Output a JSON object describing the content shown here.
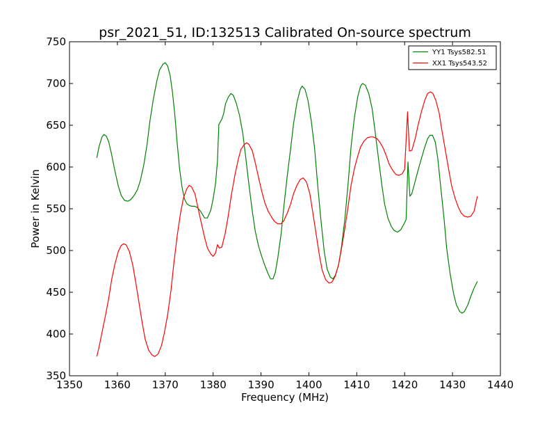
{
  "chart_data": {
    "type": "line",
    "title": "psr_2021_51, ID:132513 Calibrated On-source spectrum",
    "xlabel": "Frequency (MHz)",
    "ylabel": "Power in Kelvin",
    "xlim": [
      1350,
      1440
    ],
    "ylim": [
      350,
      750
    ],
    "x_ticks": [
      1350,
      1360,
      1370,
      1380,
      1390,
      1400,
      1410,
      1420,
      1430,
      1440
    ],
    "y_ticks": [
      350,
      400,
      450,
      500,
      550,
      600,
      650,
      700,
      750
    ],
    "grid": false,
    "legend_position": "top-right",
    "series": [
      {
        "name": "YY1 Tsys582.51",
        "color": "#008000",
        "points": [
          [
            1355.7,
            611
          ],
          [
            1356.2,
            625
          ],
          [
            1356.8,
            636
          ],
          [
            1357.2,
            639
          ],
          [
            1357.7,
            637
          ],
          [
            1358.2,
            630
          ],
          [
            1358.8,
            615
          ],
          [
            1359.5,
            595
          ],
          [
            1360.2,
            577
          ],
          [
            1360.8,
            566
          ],
          [
            1361.5,
            560
          ],
          [
            1362.2,
            559
          ],
          [
            1362.8,
            561
          ],
          [
            1363.5,
            566
          ],
          [
            1364.2,
            573
          ],
          [
            1364.8,
            584
          ],
          [
            1365.5,
            602
          ],
          [
            1366.2,
            627
          ],
          [
            1366.8,
            655
          ],
          [
            1367.5,
            681
          ],
          [
            1368.2,
            702
          ],
          [
            1368.8,
            716
          ],
          [
            1369.5,
            723
          ],
          [
            1370.0,
            725
          ],
          [
            1370.5,
            721
          ],
          [
            1371.0,
            710
          ],
          [
            1371.5,
            690
          ],
          [
            1372.0,
            662
          ],
          [
            1372.5,
            628
          ],
          [
            1373.0,
            598
          ],
          [
            1373.5,
            576
          ],
          [
            1374.0,
            562
          ],
          [
            1374.5,
            556
          ],
          [
            1375.0,
            554
          ],
          [
            1375.5,
            553
          ],
          [
            1376.2,
            553
          ],
          [
            1376.8,
            551
          ],
          [
            1377.5,
            546
          ],
          [
            1378.2,
            539
          ],
          [
            1378.8,
            539
          ],
          [
            1379.5,
            548
          ],
          [
            1380.0,
            562
          ],
          [
            1380.5,
            580
          ],
          [
            1380.9,
            607
          ],
          [
            1381.2,
            651
          ],
          [
            1381.8,
            657
          ],
          [
            1382.2,
            664
          ],
          [
            1382.6,
            676
          ],
          [
            1383.2,
            684
          ],
          [
            1383.7,
            688
          ],
          [
            1384.2,
            686
          ],
          [
            1384.8,
            677
          ],
          [
            1385.5,
            662
          ],
          [
            1386.2,
            640
          ],
          [
            1386.8,
            612
          ],
          [
            1387.5,
            578
          ],
          [
            1388.2,
            546
          ],
          [
            1388.8,
            523
          ],
          [
            1389.5,
            505
          ],
          [
            1390.2,
            492
          ],
          [
            1390.8,
            482
          ],
          [
            1391.5,
            472
          ],
          [
            1392.0,
            466
          ],
          [
            1392.5,
            466
          ],
          [
            1393.0,
            474
          ],
          [
            1393.5,
            491
          ],
          [
            1394.2,
            520
          ],
          [
            1394.8,
            554
          ],
          [
            1395.5,
            590
          ],
          [
            1396.2,
            623
          ],
          [
            1396.8,
            652
          ],
          [
            1397.5,
            677
          ],
          [
            1398.2,
            693
          ],
          [
            1398.6,
            697
          ],
          [
            1399.2,
            693
          ],
          [
            1399.8,
            680
          ],
          [
            1400.5,
            655
          ],
          [
            1401.2,
            622
          ],
          [
            1401.8,
            581
          ],
          [
            1402.5,
            537
          ],
          [
            1403.2,
            499
          ],
          [
            1403.8,
            478
          ],
          [
            1404.5,
            468
          ],
          [
            1405.0,
            466
          ],
          [
            1405.5,
            470
          ],
          [
            1406.2,
            483
          ],
          [
            1406.8,
            504
          ],
          [
            1407.5,
            537
          ],
          [
            1408.2,
            580
          ],
          [
            1408.8,
            624
          ],
          [
            1409.5,
            659
          ],
          [
            1410.2,
            684
          ],
          [
            1410.8,
            697
          ],
          [
            1411.2,
            700
          ],
          [
            1411.8,
            698
          ],
          [
            1412.5,
            688
          ],
          [
            1413.2,
            670
          ],
          [
            1413.8,
            644
          ],
          [
            1414.5,
            612
          ],
          [
            1415.2,
            580
          ],
          [
            1415.8,
            556
          ],
          [
            1416.5,
            539
          ],
          [
            1417.2,
            529
          ],
          [
            1417.8,
            524
          ],
          [
            1418.5,
            522
          ],
          [
            1419.2,
            525
          ],
          [
            1419.8,
            531
          ],
          [
            1420.3,
            537
          ],
          [
            1420.7,
            606
          ],
          [
            1421.1,
            565
          ],
          [
            1421.5,
            568
          ],
          [
            1422.2,
            583
          ],
          [
            1422.8,
            596
          ],
          [
            1423.5,
            610
          ],
          [
            1424.2,
            624
          ],
          [
            1424.8,
            634
          ],
          [
            1425.3,
            638
          ],
          [
            1425.8,
            638
          ],
          [
            1426.4,
            630
          ],
          [
            1426.9,
            611
          ],
          [
            1427.5,
            578
          ],
          [
            1428.2,
            540
          ],
          [
            1428.8,
            502
          ],
          [
            1429.5,
            472
          ],
          [
            1430.2,
            449
          ],
          [
            1430.8,
            435
          ],
          [
            1431.5,
            427
          ],
          [
            1432.0,
            425
          ],
          [
            1432.5,
            427
          ],
          [
            1433.2,
            435
          ],
          [
            1433.8,
            445
          ],
          [
            1434.5,
            455
          ],
          [
            1435.2,
            463
          ]
        ]
      },
      {
        "name": "XX1 Tsys543.52",
        "color": "#ff0000",
        "points": [
          [
            1355.7,
            373
          ],
          [
            1356.2,
            385
          ],
          [
            1356.8,
            402
          ],
          [
            1357.5,
            422
          ],
          [
            1358.2,
            443
          ],
          [
            1358.8,
            465
          ],
          [
            1359.5,
            484
          ],
          [
            1360.2,
            499
          ],
          [
            1360.8,
            506
          ],
          [
            1361.3,
            508
          ],
          [
            1361.8,
            507
          ],
          [
            1362.5,
            499
          ],
          [
            1363.2,
            483
          ],
          [
            1363.8,
            463
          ],
          [
            1364.5,
            438
          ],
          [
            1365.2,
            413
          ],
          [
            1365.8,
            394
          ],
          [
            1366.5,
            381
          ],
          [
            1367.2,
            375
          ],
          [
            1367.8,
            373
          ],
          [
            1368.5,
            376
          ],
          [
            1369.2,
            386
          ],
          [
            1369.8,
            401
          ],
          [
            1370.5,
            423
          ],
          [
            1371.2,
            452
          ],
          [
            1371.8,
            485
          ],
          [
            1372.5,
            518
          ],
          [
            1373.2,
            545
          ],
          [
            1373.8,
            563
          ],
          [
            1374.5,
            574
          ],
          [
            1375.0,
            578
          ],
          [
            1375.5,
            576
          ],
          [
            1376.2,
            568
          ],
          [
            1376.8,
            552
          ],
          [
            1377.5,
            534
          ],
          [
            1378.2,
            516
          ],
          [
            1378.8,
            503
          ],
          [
            1379.5,
            496
          ],
          [
            1380.0,
            493
          ],
          [
            1380.5,
            497
          ],
          [
            1380.9,
            507
          ],
          [
            1381.3,
            503
          ],
          [
            1381.8,
            504
          ],
          [
            1382.5,
            520
          ],
          [
            1383.2,
            543
          ],
          [
            1383.8,
            566
          ],
          [
            1384.5,
            589
          ],
          [
            1385.2,
            608
          ],
          [
            1385.8,
            621
          ],
          [
            1386.5,
            627
          ],
          [
            1387.0,
            629
          ],
          [
            1387.5,
            627
          ],
          [
            1388.2,
            619
          ],
          [
            1388.8,
            605
          ],
          [
            1389.5,
            587
          ],
          [
            1390.2,
            570
          ],
          [
            1390.8,
            557
          ],
          [
            1391.5,
            547
          ],
          [
            1392.2,
            540
          ],
          [
            1392.8,
            535
          ],
          [
            1393.5,
            532
          ],
          [
            1394.2,
            532
          ],
          [
            1394.8,
            536
          ],
          [
            1395.5,
            545
          ],
          [
            1396.2,
            556
          ],
          [
            1396.8,
            568
          ],
          [
            1397.5,
            578
          ],
          [
            1398.2,
            585
          ],
          [
            1398.8,
            587
          ],
          [
            1399.5,
            582
          ],
          [
            1400.2,
            568
          ],
          [
            1400.8,
            546
          ],
          [
            1401.5,
            520
          ],
          [
            1402.2,
            494
          ],
          [
            1402.8,
            476
          ],
          [
            1403.5,
            465
          ],
          [
            1404.2,
            461
          ],
          [
            1404.8,
            462
          ],
          [
            1405.5,
            469
          ],
          [
            1406.2,
            483
          ],
          [
            1406.8,
            502
          ],
          [
            1407.5,
            526
          ],
          [
            1408.2,
            553
          ],
          [
            1408.8,
            578
          ],
          [
            1409.5,
            598
          ],
          [
            1410.2,
            613
          ],
          [
            1410.8,
            624
          ],
          [
            1411.5,
            631
          ],
          [
            1412.2,
            635
          ],
          [
            1412.8,
            636
          ],
          [
            1413.5,
            636
          ],
          [
            1414.2,
            634
          ],
          [
            1414.8,
            630
          ],
          [
            1415.5,
            623
          ],
          [
            1416.2,
            613
          ],
          [
            1416.8,
            603
          ],
          [
            1417.5,
            596
          ],
          [
            1418.2,
            591
          ],
          [
            1418.8,
            590
          ],
          [
            1419.5,
            592
          ],
          [
            1420.0,
            597
          ],
          [
            1420.6,
            666
          ],
          [
            1421.0,
            619
          ],
          [
            1421.5,
            620
          ],
          [
            1422.2,
            634
          ],
          [
            1422.8,
            650
          ],
          [
            1423.5,
            666
          ],
          [
            1424.2,
            680
          ],
          [
            1424.8,
            688
          ],
          [
            1425.4,
            690
          ],
          [
            1425.9,
            688
          ],
          [
            1426.5,
            680
          ],
          [
            1427.2,
            665
          ],
          [
            1427.8,
            643
          ],
          [
            1428.5,
            620
          ],
          [
            1429.2,
            597
          ],
          [
            1429.8,
            578
          ],
          [
            1430.5,
            563
          ],
          [
            1431.2,
            552
          ],
          [
            1431.8,
            545
          ],
          [
            1432.5,
            541
          ],
          [
            1433.2,
            540
          ],
          [
            1433.8,
            541
          ],
          [
            1434.5,
            547
          ],
          [
            1435.2,
            565
          ]
        ]
      }
    ]
  }
}
